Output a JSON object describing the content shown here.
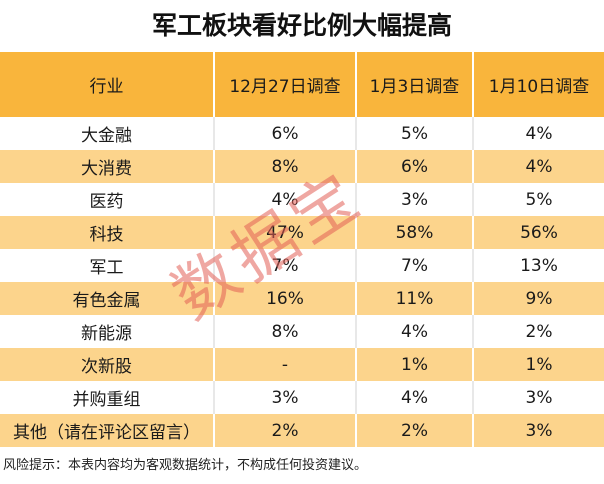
{
  "title": "军工板块看好比例大幅提高",
  "table": {
    "headers": [
      "行业",
      "12月27日调查",
      "1月3日调查",
      "1月10日调查"
    ],
    "rows": [
      [
        "大金融",
        "6%",
        "5%",
        "4%"
      ],
      [
        "大消费",
        "8%",
        "6%",
        "4%"
      ],
      [
        "医药",
        "4%",
        "3%",
        "5%"
      ],
      [
        "科技",
        "47%",
        "58%",
        "56%"
      ],
      [
        "军工",
        "7%",
        "7%",
        "13%"
      ],
      [
        "有色金属",
        "16%",
        "11%",
        "9%"
      ],
      [
        "新能源",
        "8%",
        "4%",
        "2%"
      ],
      [
        "次新股",
        "-",
        "1%",
        "1%"
      ],
      [
        "并购重组",
        "3%",
        "4%",
        "3%"
      ],
      [
        "其他（请在评论区留言）",
        "2%",
        "2%",
        "3%"
      ]
    ]
  },
  "footnote": "风险提示：本表内容均为客观数据统计，不构成任何投资建议。",
  "watermark": "数据宝",
  "colors": {
    "header_bg": "#f9b53c",
    "stripe_bg": "#fcd48c",
    "watermark": "#e15f55"
  }
}
